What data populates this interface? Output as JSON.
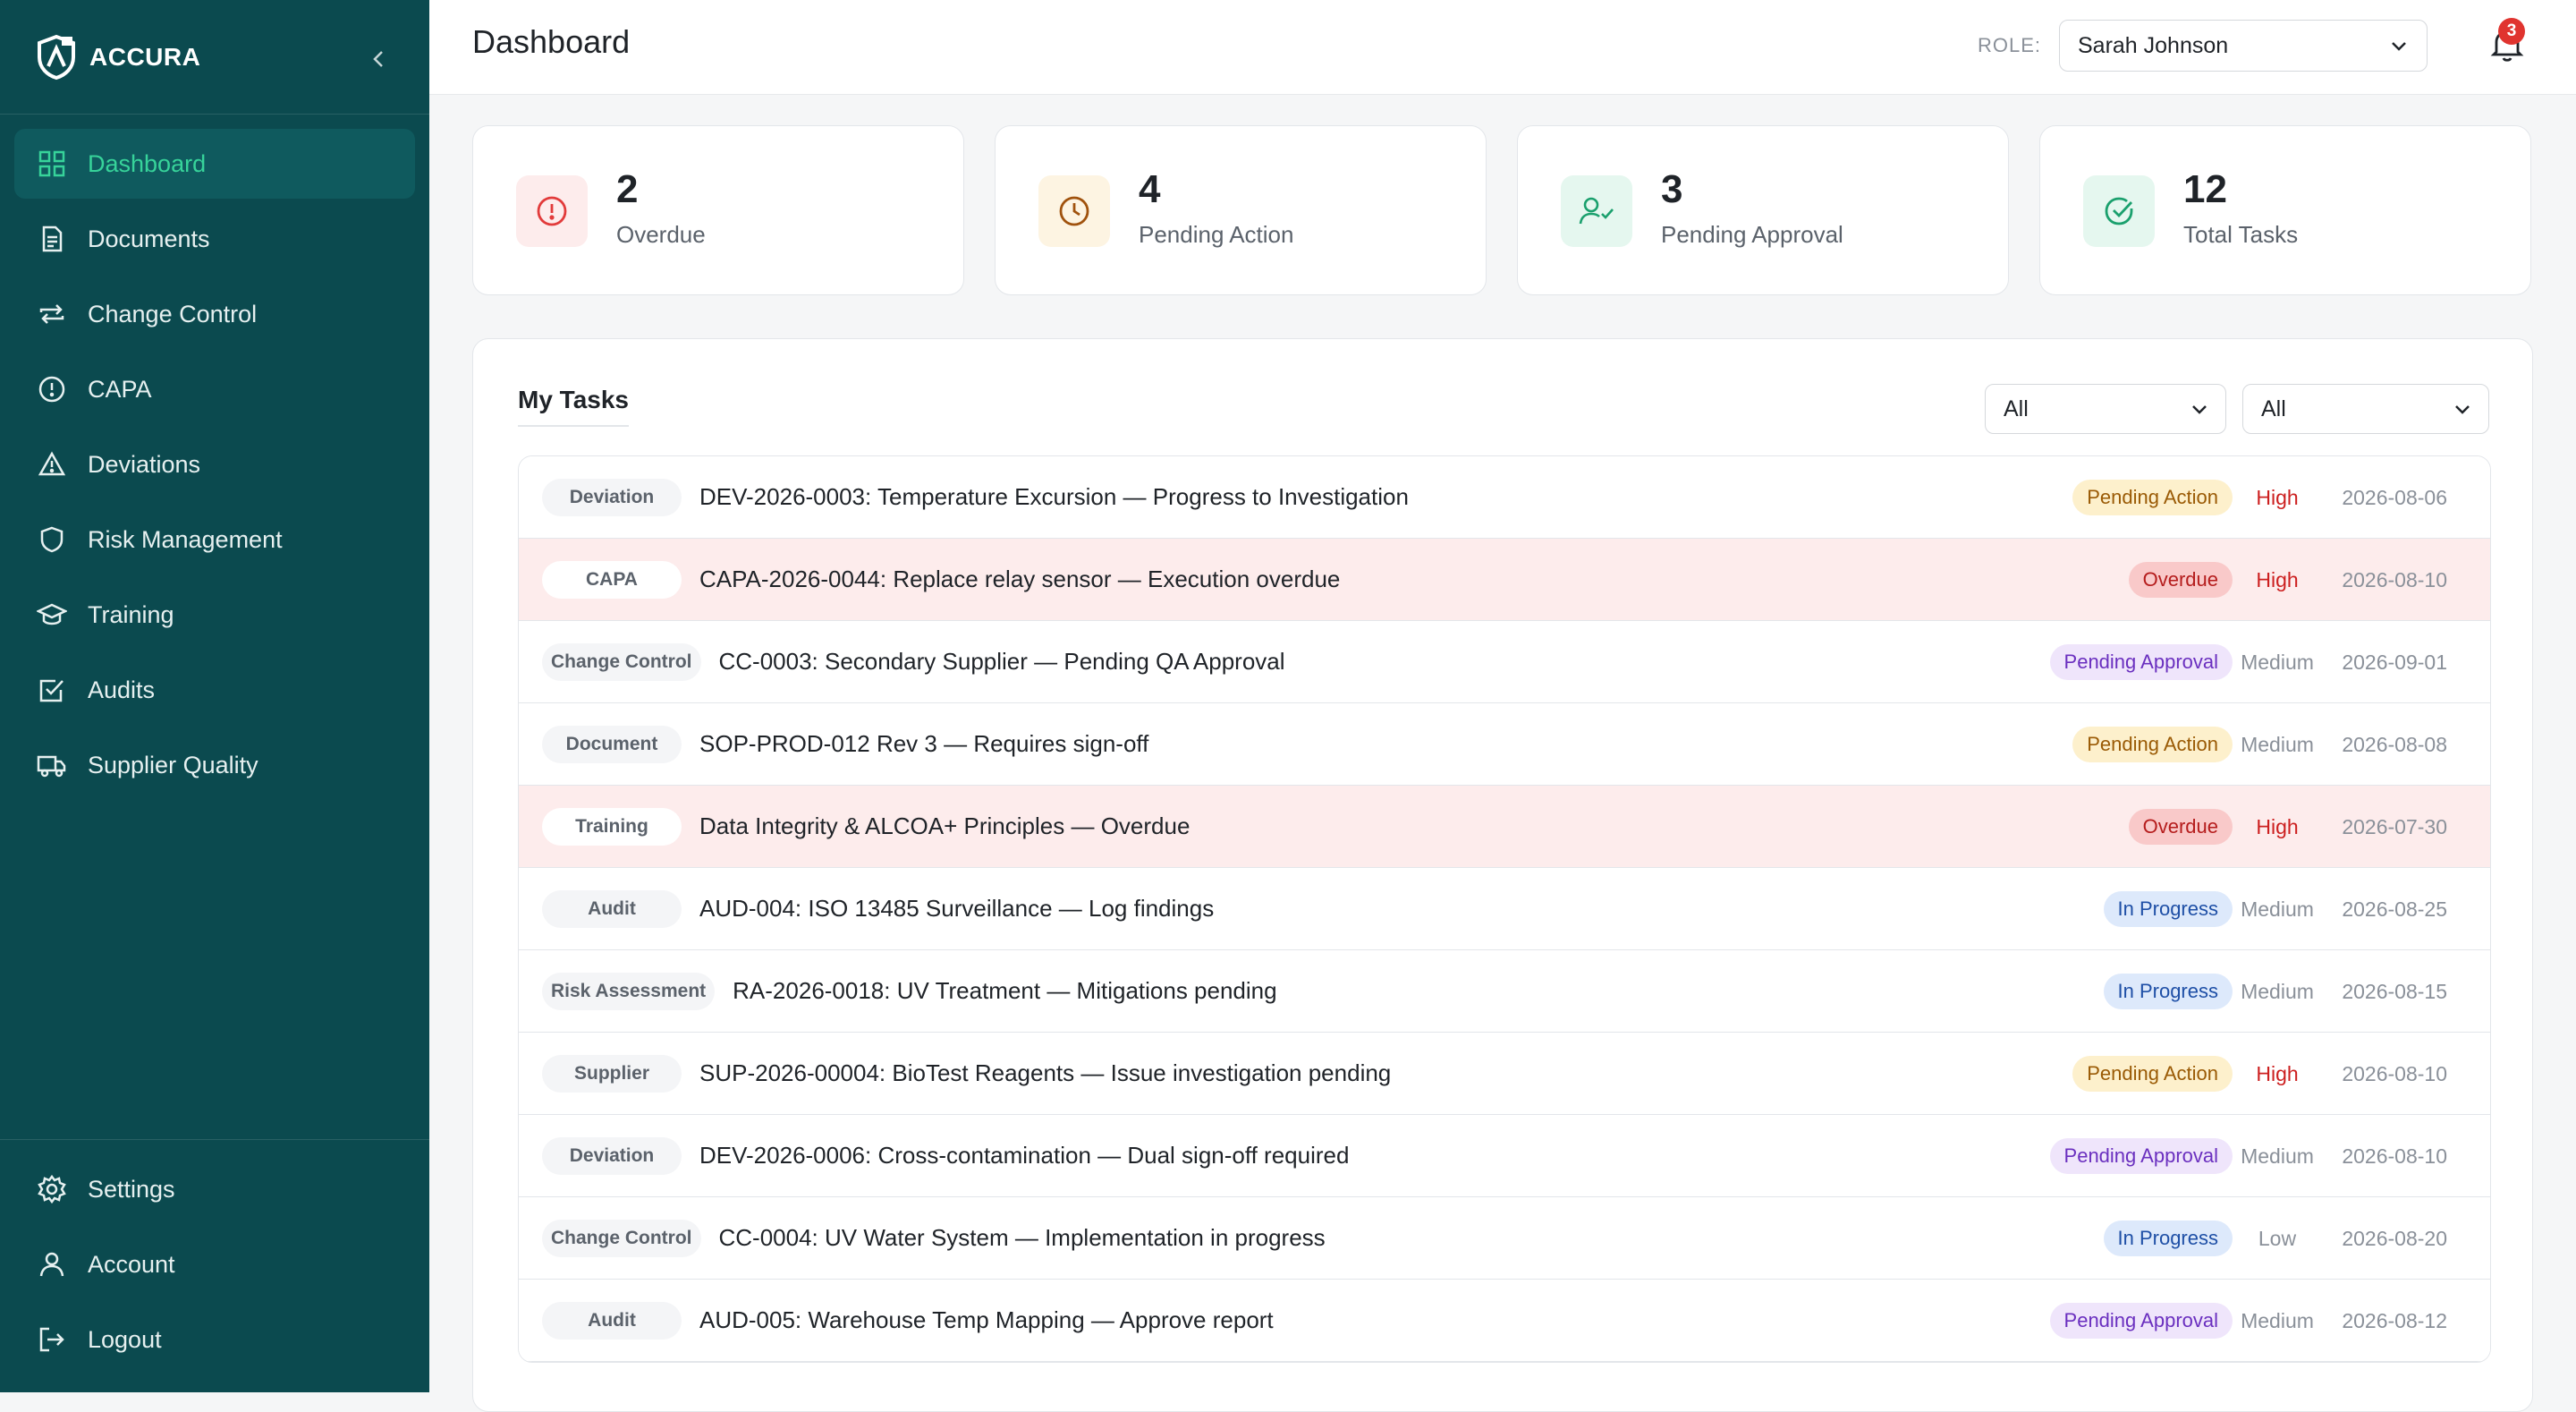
{
  "brand": {
    "name": "ACCURA"
  },
  "nav": {
    "items": [
      {
        "label": "Dashboard",
        "icon": "grid-icon",
        "active": true
      },
      {
        "label": "Documents",
        "icon": "document-icon"
      },
      {
        "label": "Change Control",
        "icon": "repeat-icon"
      },
      {
        "label": "CAPA",
        "icon": "alert-circle-icon"
      },
      {
        "label": "Deviations",
        "icon": "warning-triangle-icon"
      },
      {
        "label": "Risk Management",
        "icon": "shield-icon"
      },
      {
        "label": "Training",
        "icon": "graduation-cap-icon"
      },
      {
        "label": "Audits",
        "icon": "check-square-icon"
      },
      {
        "label": "Supplier Quality",
        "icon": "truck-icon"
      }
    ],
    "bottom": [
      {
        "label": "Settings",
        "icon": "gear-icon"
      },
      {
        "label": "Account",
        "icon": "user-icon"
      },
      {
        "label": "Logout",
        "icon": "logout-icon"
      }
    ]
  },
  "header": {
    "title": "Dashboard",
    "role_label": "ROLE:",
    "role_value": "Sarah Johnson",
    "notification_count": "3"
  },
  "stats": [
    {
      "value": "2",
      "label": "Overdue",
      "icon": "alert-circle-icon",
      "color": "#e23b3b"
    },
    {
      "value": "4",
      "label": "Pending Action",
      "icon": "clock-icon",
      "color": "#a0520d"
    },
    {
      "value": "3",
      "label": "Pending Approval",
      "icon": "user-check-icon",
      "color": "#1aa06d"
    },
    {
      "value": "12",
      "label": "Total Tasks",
      "icon": "check-circle-icon",
      "color": "#1aa06d"
    }
  ],
  "tasks": {
    "title": "My Tasks",
    "filter_1": "All",
    "filter_2": "All",
    "rows": [
      {
        "type": "Deviation",
        "text": "DEV-2026-0003: Temperature Excursion — Progress to Investigation",
        "status": "Pending Action",
        "priority": "High",
        "due": "2026-08-06"
      },
      {
        "type": "CAPA",
        "text": "CAPA-2026-0044: Replace relay sensor — Execution overdue",
        "status": "Overdue",
        "priority": "High",
        "due": "2026-08-10"
      },
      {
        "type": "Change Control",
        "text": "CC-0003: Secondary Supplier — Pending QA Approval",
        "status": "Pending Approval",
        "priority": "Medium",
        "due": "2026-09-01"
      },
      {
        "type": "Document",
        "text": "SOP-PROD-012 Rev 3 — Requires sign-off",
        "status": "Pending Action",
        "priority": "Medium",
        "due": "2026-08-08"
      },
      {
        "type": "Training",
        "text": "Data Integrity & ALCOA+ Principles — Overdue",
        "status": "Overdue",
        "priority": "High",
        "due": "2026-07-30"
      },
      {
        "type": "Audit",
        "text": "AUD-004: ISO 13485 Surveillance — Log findings",
        "status": "In Progress",
        "priority": "Medium",
        "due": "2026-08-25"
      },
      {
        "type": "Risk Assessment",
        "text": "RA-2026-0018: UV Treatment — Mitigations pending",
        "status": "In Progress",
        "priority": "Medium",
        "due": "2026-08-15"
      },
      {
        "type": "Supplier",
        "text": "SUP-2026-00004: BioTest Reagents — Issue investigation pending",
        "status": "Pending Action",
        "priority": "High",
        "due": "2026-08-10"
      },
      {
        "type": "Deviation",
        "text": "DEV-2026-0006: Cross-contamination — Dual sign-off required",
        "status": "Pending Approval",
        "priority": "Medium",
        "due": "2026-08-10"
      },
      {
        "type": "Change Control",
        "text": "CC-0004: UV Water System — Implementation in progress",
        "status": "In Progress",
        "priority": "Low",
        "due": "2026-08-20"
      },
      {
        "type": "Audit",
        "text": "AUD-005: Warehouse Temp Mapping — Approve report",
        "status": "Pending Approval",
        "priority": "Medium",
        "due": "2026-08-12"
      }
    ]
  }
}
